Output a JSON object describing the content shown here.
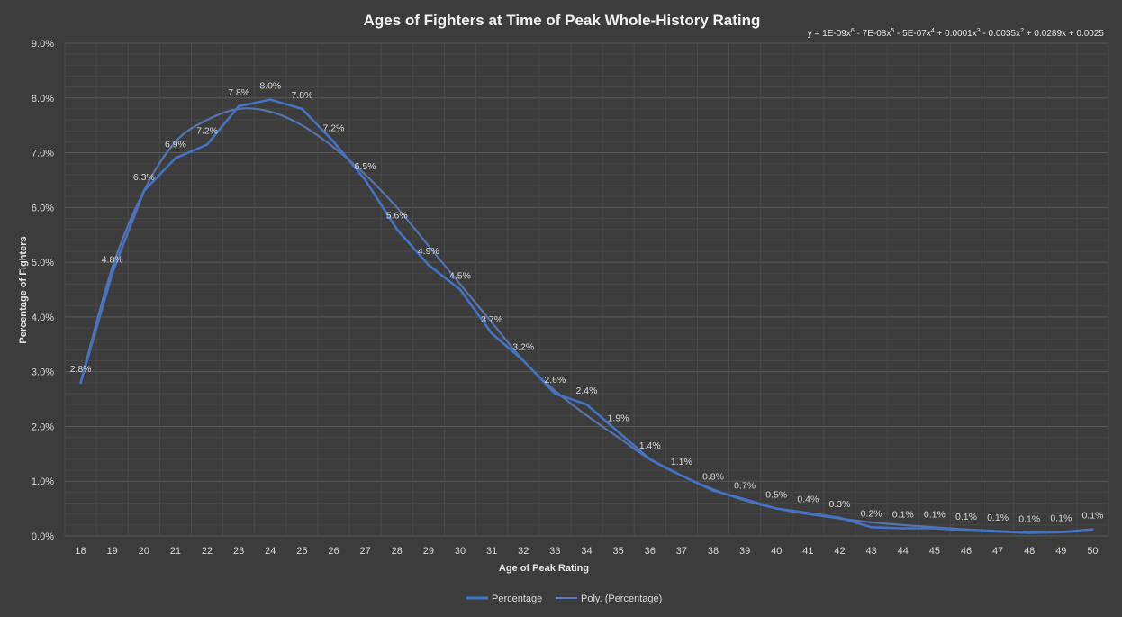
{
  "chart_data": {
    "type": "line",
    "title": "Ages of Fighters at Time of Peak Whole-History Rating",
    "equation": {
      "prefix": "y = 1E-09x",
      "sup6": "6",
      "t2": " - 7E-08x",
      "sup5": "5",
      "t3": " - 5E-07x",
      "sup4": "4",
      "t4": " + 0.0001x",
      "sup3": "3",
      "t5": " - 0.0035x",
      "sup2": "2",
      "t6": " + 0.0289x + 0.0025"
    },
    "xlabel": "Age of Peak Rating",
    "ylabel": "Percentage of Fighters",
    "x": [
      18,
      19,
      20,
      21,
      22,
      23,
      24,
      25,
      26,
      27,
      28,
      29,
      30,
      31,
      32,
      33,
      34,
      35,
      36,
      37,
      38,
      39,
      40,
      41,
      42,
      43,
      44,
      45,
      46,
      47,
      48,
      49,
      50
    ],
    "y_tick_labels": [
      "0.0%",
      "1.0%",
      "2.0%",
      "3.0%",
      "4.0%",
      "5.0%",
      "6.0%",
      "7.0%",
      "8.0%",
      "9.0%"
    ],
    "ylim": [
      0,
      9
    ],
    "grid": true,
    "legend_position": "bottom",
    "series": [
      {
        "name": "Percentage",
        "color": "#4472c4",
        "values": [
          2.8,
          4.8,
          6.3,
          6.9,
          7.15,
          7.85,
          7.97,
          7.8,
          7.2,
          6.5,
          5.6,
          4.95,
          4.5,
          3.7,
          3.2,
          2.6,
          2.4,
          1.9,
          1.4,
          1.1,
          0.83,
          0.67,
          0.5,
          0.42,
          0.33,
          0.16,
          0.14,
          0.14,
          0.1,
          0.08,
          0.06,
          0.07,
          0.12
        ],
        "labels": [
          "2.8%",
          "4.8%",
          "6.3%",
          "6.9%",
          "7.2%",
          "7.8%",
          "8.0%",
          "7.8%",
          "7.2%",
          "6.5%",
          "5.6%",
          "4.9%",
          "4.5%",
          "3.7%",
          "3.2%",
          "2.6%",
          "2.4%",
          "1.9%",
          "1.4%",
          "1.1%",
          "0.8%",
          "0.7%",
          "0.5%",
          "0.4%",
          "0.3%",
          "0.2%",
          "0.1%",
          "0.1%",
          "0.1%",
          "0.1%",
          "0.1%",
          "0.1%",
          "0.1%"
        ]
      },
      {
        "name": "Poly. (Percentage)",
        "color": "#5b7cc0",
        "trendline": true,
        "values": [
          2.8,
          4.9,
          6.3,
          7.2,
          7.6,
          7.8,
          7.75,
          7.5,
          7.1,
          6.6,
          6.0,
          5.3,
          4.6,
          3.9,
          3.2,
          2.65,
          2.2,
          1.8,
          1.4,
          1.1,
          0.85,
          0.65,
          0.5,
          0.4,
          0.32,
          0.25,
          0.2,
          0.16,
          0.12,
          0.09,
          0.07,
          0.07,
          0.1
        ]
      }
    ]
  }
}
